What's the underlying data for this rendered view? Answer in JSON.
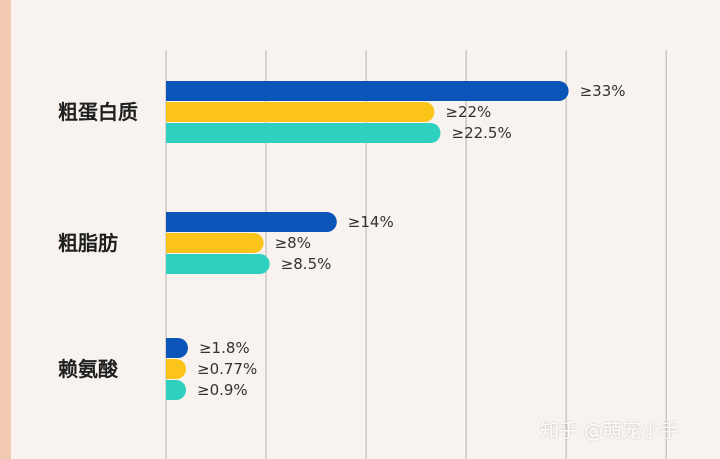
{
  "chart_data": {
    "type": "bar",
    "orientation": "horizontal",
    "title": "",
    "xlabel": "",
    "ylabel": "",
    "categories": [
      "粗蛋白质",
      "粗脂肪",
      "赖氨酸"
    ],
    "series": [
      {
        "values": [
          33,
          14,
          1.8
        ],
        "labels": [
          "≥33%",
          "≥14%",
          "≥1.8%"
        ]
      },
      {
        "values": [
          22,
          8,
          0.77
        ],
        "labels": [
          "≥22%",
          "≥8%",
          "≥0.77%"
        ]
      },
      {
        "values": [
          22.5,
          8.5,
          0.9
        ],
        "labels": [
          "≥22.5%",
          "≥8.5%",
          "≥0.9%"
        ]
      }
    ],
    "xlim": [
      0,
      40
    ],
    "grid": true
  },
  "colors": {
    "background": "#f8f3ee",
    "left_strip": "#f1c9b0",
    "gridline": "#b9b3ad",
    "series": [
      "#0b54b8",
      "#fcc419",
      "#2fd0c0"
    ]
  },
  "watermark": "知乎 @萌宠小手"
}
